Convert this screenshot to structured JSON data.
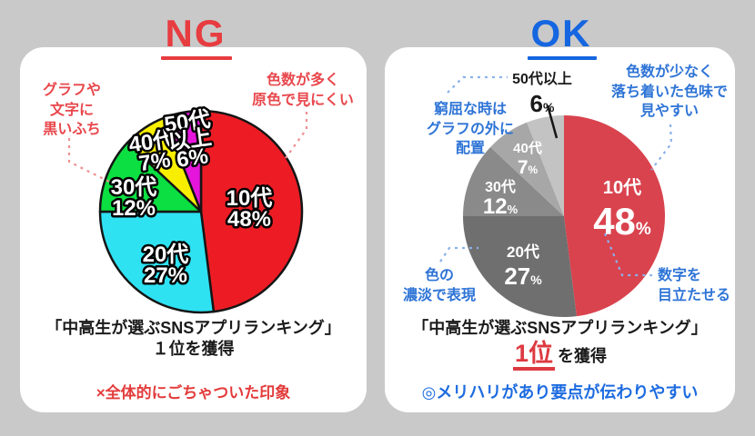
{
  "background_color": "#c9c9c9",
  "accent_red": "#e73c40",
  "accent_blue": "#1566e0",
  "ng": {
    "title": "NG",
    "annotations": [
      {
        "lines": [
          "グラフや",
          "文字に",
          "黒いふち"
        ]
      },
      {
        "lines": [
          "色数が多く",
          "原色で見にくい"
        ]
      }
    ],
    "caption_line1": "「中高生が選ぶSNSアプリランキング」",
    "caption_line2": "１位を獲得",
    "note": "×全体的にごちゃついた印象"
  },
  "ok": {
    "title": "OK",
    "annotations": [
      {
        "lines": [
          "窮屈な時は",
          "グラフの外に",
          "配置"
        ]
      },
      {
        "lines": [
          "色数が少なく",
          "落ち着いた色味で",
          "見やすい"
        ]
      },
      {
        "lines": [
          "色の",
          "濃淡で表現"
        ]
      },
      {
        "lines": [
          "数字を",
          "目立たせる"
        ]
      }
    ],
    "caption_line1": "「中高生が選ぶSNSアプリランキング」",
    "caption_rank": "1位",
    "caption_suffix": "を獲得",
    "note": "◎メリハリがあり要点が伝わりやすい"
  },
  "chart_data": [
    {
      "id": "ng-pie",
      "type": "pie",
      "categories": [
        "10代",
        "20代",
        "30代",
        "40代",
        "50代以上"
      ],
      "values": [
        48,
        27,
        12,
        7,
        6
      ],
      "unit": "%",
      "colors": [
        "#ed1c24",
        "#2ee2f2",
        "#0bdf41",
        "#f8ef00",
        "#e515dc"
      ],
      "slice_outline": "#151515",
      "labels": [
        [
          "10代",
          "48%"
        ],
        [
          "20代",
          "27%"
        ],
        [
          "30代",
          "12%"
        ],
        [
          "40代",
          "7%"
        ],
        [
          "50代",
          "以上",
          "6%"
        ]
      ],
      "label_style": "white text with black outline, inside slices",
      "start_angle": "top",
      "direction": "clockwise",
      "legend": "none"
    },
    {
      "id": "ok-pie",
      "type": "pie",
      "categories": [
        "10代",
        "20代",
        "30代",
        "40代",
        "50代以上"
      ],
      "values": [
        48,
        27,
        12,
        7,
        6
      ],
      "unit": "%",
      "colors": [
        "#d9434e",
        "#6f6f6f",
        "#8a8a8a",
        "#a7a7a7",
        "#c3c3c3"
      ],
      "slice_outline": "none",
      "labels": [
        [
          "10代",
          "48%"
        ],
        [
          "20代",
          "27%"
        ],
        [
          "30代",
          "12%"
        ],
        [
          "40代",
          "7%"
        ],
        [
          "50代以上",
          "6%"
        ]
      ],
      "label_style": "white text inside slices; 50代以上 placed outside in black with leader line",
      "start_angle": "top",
      "direction": "clockwise",
      "legend": "none"
    }
  ]
}
